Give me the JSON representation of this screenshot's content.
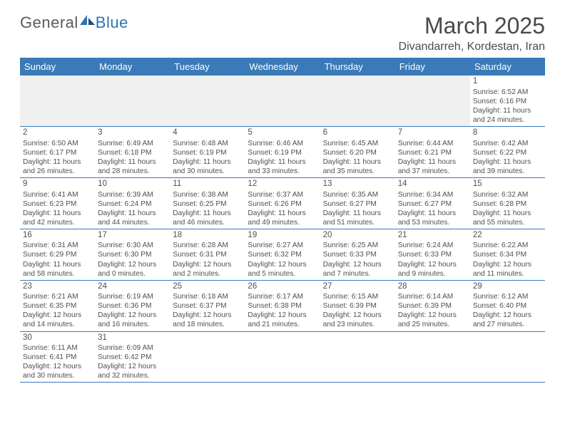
{
  "logo": {
    "part1": "General",
    "part2": "Blue"
  },
  "title": "March 2025",
  "subtitle": "Divandarreh, Kordestan, Iran",
  "header_color": "#3a7ab8",
  "weekdays": [
    "Sunday",
    "Monday",
    "Tuesday",
    "Wednesday",
    "Thursday",
    "Friday",
    "Saturday"
  ],
  "weeks": [
    [
      null,
      null,
      null,
      null,
      null,
      null,
      {
        "d": "1",
        "sr": "6:52 AM",
        "ss": "6:16 PM",
        "dl": "11 hours and 24 minutes."
      }
    ],
    [
      {
        "d": "2",
        "sr": "6:50 AM",
        "ss": "6:17 PM",
        "dl": "11 hours and 26 minutes."
      },
      {
        "d": "3",
        "sr": "6:49 AM",
        "ss": "6:18 PM",
        "dl": "11 hours and 28 minutes."
      },
      {
        "d": "4",
        "sr": "6:48 AM",
        "ss": "6:19 PM",
        "dl": "11 hours and 30 minutes."
      },
      {
        "d": "5",
        "sr": "6:46 AM",
        "ss": "6:19 PM",
        "dl": "11 hours and 33 minutes."
      },
      {
        "d": "6",
        "sr": "6:45 AM",
        "ss": "6:20 PM",
        "dl": "11 hours and 35 minutes."
      },
      {
        "d": "7",
        "sr": "6:44 AM",
        "ss": "6:21 PM",
        "dl": "11 hours and 37 minutes."
      },
      {
        "d": "8",
        "sr": "6:42 AM",
        "ss": "6:22 PM",
        "dl": "11 hours and 39 minutes."
      }
    ],
    [
      {
        "d": "9",
        "sr": "6:41 AM",
        "ss": "6:23 PM",
        "dl": "11 hours and 42 minutes."
      },
      {
        "d": "10",
        "sr": "6:39 AM",
        "ss": "6:24 PM",
        "dl": "11 hours and 44 minutes."
      },
      {
        "d": "11",
        "sr": "6:38 AM",
        "ss": "6:25 PM",
        "dl": "11 hours and 46 minutes."
      },
      {
        "d": "12",
        "sr": "6:37 AM",
        "ss": "6:26 PM",
        "dl": "11 hours and 49 minutes."
      },
      {
        "d": "13",
        "sr": "6:35 AM",
        "ss": "6:27 PM",
        "dl": "11 hours and 51 minutes."
      },
      {
        "d": "14",
        "sr": "6:34 AM",
        "ss": "6:27 PM",
        "dl": "11 hours and 53 minutes."
      },
      {
        "d": "15",
        "sr": "6:32 AM",
        "ss": "6:28 PM",
        "dl": "11 hours and 55 minutes."
      }
    ],
    [
      {
        "d": "16",
        "sr": "6:31 AM",
        "ss": "6:29 PM",
        "dl": "11 hours and 58 minutes."
      },
      {
        "d": "17",
        "sr": "6:30 AM",
        "ss": "6:30 PM",
        "dl": "12 hours and 0 minutes."
      },
      {
        "d": "18",
        "sr": "6:28 AM",
        "ss": "6:31 PM",
        "dl": "12 hours and 2 minutes."
      },
      {
        "d": "19",
        "sr": "6:27 AM",
        "ss": "6:32 PM",
        "dl": "12 hours and 5 minutes."
      },
      {
        "d": "20",
        "sr": "6:25 AM",
        "ss": "6:33 PM",
        "dl": "12 hours and 7 minutes."
      },
      {
        "d": "21",
        "sr": "6:24 AM",
        "ss": "6:33 PM",
        "dl": "12 hours and 9 minutes."
      },
      {
        "d": "22",
        "sr": "6:22 AM",
        "ss": "6:34 PM",
        "dl": "12 hours and 11 minutes."
      }
    ],
    [
      {
        "d": "23",
        "sr": "6:21 AM",
        "ss": "6:35 PM",
        "dl": "12 hours and 14 minutes."
      },
      {
        "d": "24",
        "sr": "6:19 AM",
        "ss": "6:36 PM",
        "dl": "12 hours and 16 minutes."
      },
      {
        "d": "25",
        "sr": "6:18 AM",
        "ss": "6:37 PM",
        "dl": "12 hours and 18 minutes."
      },
      {
        "d": "26",
        "sr": "6:17 AM",
        "ss": "6:38 PM",
        "dl": "12 hours and 21 minutes."
      },
      {
        "d": "27",
        "sr": "6:15 AM",
        "ss": "6:39 PM",
        "dl": "12 hours and 23 minutes."
      },
      {
        "d": "28",
        "sr": "6:14 AM",
        "ss": "6:39 PM",
        "dl": "12 hours and 25 minutes."
      },
      {
        "d": "29",
        "sr": "6:12 AM",
        "ss": "6:40 PM",
        "dl": "12 hours and 27 minutes."
      }
    ],
    [
      {
        "d": "30",
        "sr": "6:11 AM",
        "ss": "6:41 PM",
        "dl": "12 hours and 30 minutes."
      },
      {
        "d": "31",
        "sr": "6:09 AM",
        "ss": "6:42 PM",
        "dl": "12 hours and 32 minutes."
      },
      null,
      null,
      null,
      null,
      null
    ]
  ],
  "labels": {
    "sunrise": "Sunrise:",
    "sunset": "Sunset:",
    "daylight": "Daylight:"
  }
}
